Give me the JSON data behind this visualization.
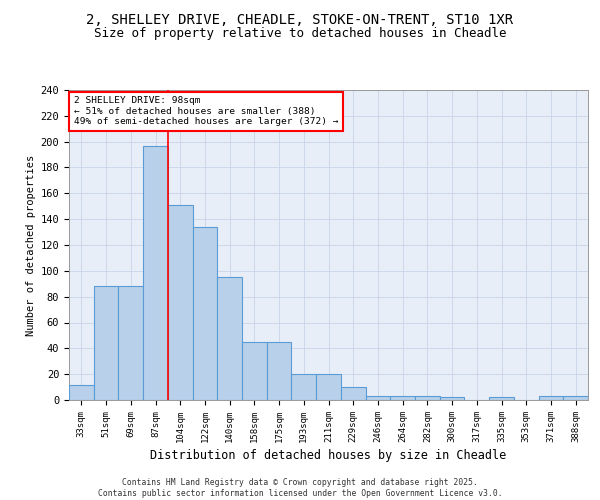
{
  "title_line1": "2, SHELLEY DRIVE, CHEADLE, STOKE-ON-TRENT, ST10 1XR",
  "title_line2": "Size of property relative to detached houses in Cheadle",
  "xlabel": "Distribution of detached houses by size in Cheadle",
  "ylabel": "Number of detached properties",
  "categories": [
    "33sqm",
    "51sqm",
    "69sqm",
    "87sqm",
    "104sqm",
    "122sqm",
    "140sqm",
    "158sqm",
    "175sqm",
    "193sqm",
    "211sqm",
    "229sqm",
    "246sqm",
    "264sqm",
    "282sqm",
    "300sqm",
    "317sqm",
    "335sqm",
    "353sqm",
    "371sqm",
    "388sqm"
  ],
  "values": [
    12,
    88,
    88,
    197,
    151,
    134,
    95,
    45,
    45,
    20,
    20,
    10,
    3,
    3,
    3,
    2,
    0,
    2,
    0,
    3,
    3
  ],
  "bar_color": "#b8d0ea",
  "bar_edge_color": "#5b9bd5",
  "bg_color": "#e8eef8",
  "grid_color": "#c8d4e8",
  "red_line_x": 3.5,
  "annotation_text": "2 SHELLEY DRIVE: 98sqm\n← 51% of detached houses are smaller (388)\n49% of semi-detached houses are larger (372) →",
  "annotation_box_color": "white",
  "annotation_box_edge": "red",
  "footer": "Contains HM Land Registry data © Crown copyright and database right 2025.\nContains public sector information licensed under the Open Government Licence v3.0.",
  "ylim": [
    0,
    240
  ],
  "yticks": [
    0,
    20,
    40,
    60,
    80,
    100,
    120,
    140,
    160,
    180,
    200,
    220,
    240
  ]
}
